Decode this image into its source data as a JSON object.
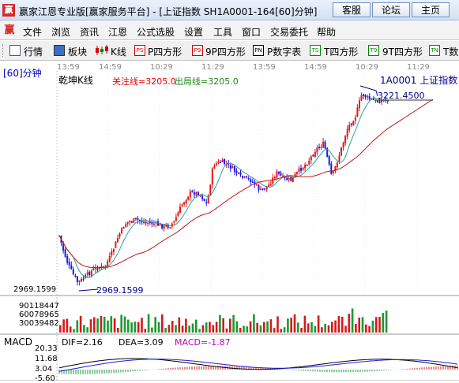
{
  "window": {
    "logo_glyph": "赢",
    "title": "赢家江恩专业版[赢家服务平台] - [上证指数  SH1A0001-164[60]分钟]",
    "buttons": [
      "客服",
      "论坛",
      "主页"
    ]
  },
  "menu": {
    "logo_glyph": "赢",
    "items": [
      "文件",
      "浏览",
      "资讯",
      "江恩",
      "公式选股",
      "设置",
      "工具",
      "窗口",
      "交易委托",
      "帮助"
    ]
  },
  "toolbar": {
    "items": [
      {
        "label": "行情",
        "icon": "list-icon"
      },
      {
        "label": "板块",
        "icon": "grid-icon"
      },
      {
        "label": "K线",
        "icon": "candles-icon"
      },
      {
        "label": "P四方形",
        "icon": "ps-icon",
        "tag": "PS"
      },
      {
        "label": "9P四方形",
        "icon": "p9-icon",
        "tag": "P9"
      },
      {
        "label": "P数字表",
        "icon": "pn-icon",
        "tag": "PN"
      },
      {
        "label": "T四方形",
        "icon": "ts-icon",
        "tag": "TS"
      },
      {
        "label": "9T四方形",
        "icon": "t9-icon",
        "tag": "T9"
      },
      {
        "label": "T数",
        "icon": "tn-icon",
        "tag": "TN"
      }
    ]
  },
  "chart": {
    "period_label": "[60]分钟",
    "indicator_title": "乾坤K线",
    "attention_line": "关注线=3205.0",
    "exit_line": "出局线=3205.0",
    "symbol_name": "1A0001  上证指数",
    "time_ticks": [
      "13:59",
      "14:59",
      "10:29",
      "11:29",
      "13:59",
      "14:59",
      "10:29",
      "11:29"
    ],
    "high_label": "3221.4500",
    "low_label": "2969.1599",
    "low_axis_label": "2969.1599",
    "volume_axis": [
      "90118447",
      "60078965",
      "30039482"
    ],
    "macd": {
      "title": "MACD",
      "dif": "DIF=2.16",
      "dea": "DEA=3.09",
      "macd": "MACD=-1.87",
      "axis": [
        "20.33",
        "11.68",
        "3.04",
        "-5.60"
      ]
    },
    "colors": {
      "up": "#ee1111",
      "down": "#1a1ae6",
      "ma_fast": "#2aa0a0",
      "ma_slow": "#c01818",
      "vol_up": "#d81818",
      "vol_down": "#1a9a30"
    },
    "chart_data": {
      "type": "candlestick",
      "ylim": [
        2969.1599,
        3221.45
      ],
      "bar_count": 164,
      "key_points": [
        {
          "label": "low",
          "value": 2969.1599
        },
        {
          "label": "high",
          "value": 3221.45
        },
        {
          "label": "attention_line",
          "value": 3205.0
        },
        {
          "label": "exit_line",
          "value": 3205.0
        }
      ],
      "macd_current": {
        "dif": 2.16,
        "dea": 3.09,
        "macd": -1.87
      },
      "macd_axis_ticks": [
        20.33,
        11.68,
        3.04,
        -5.6
      ],
      "volume_axis_ticks": [
        90118447,
        60078965,
        30039482
      ]
    }
  }
}
